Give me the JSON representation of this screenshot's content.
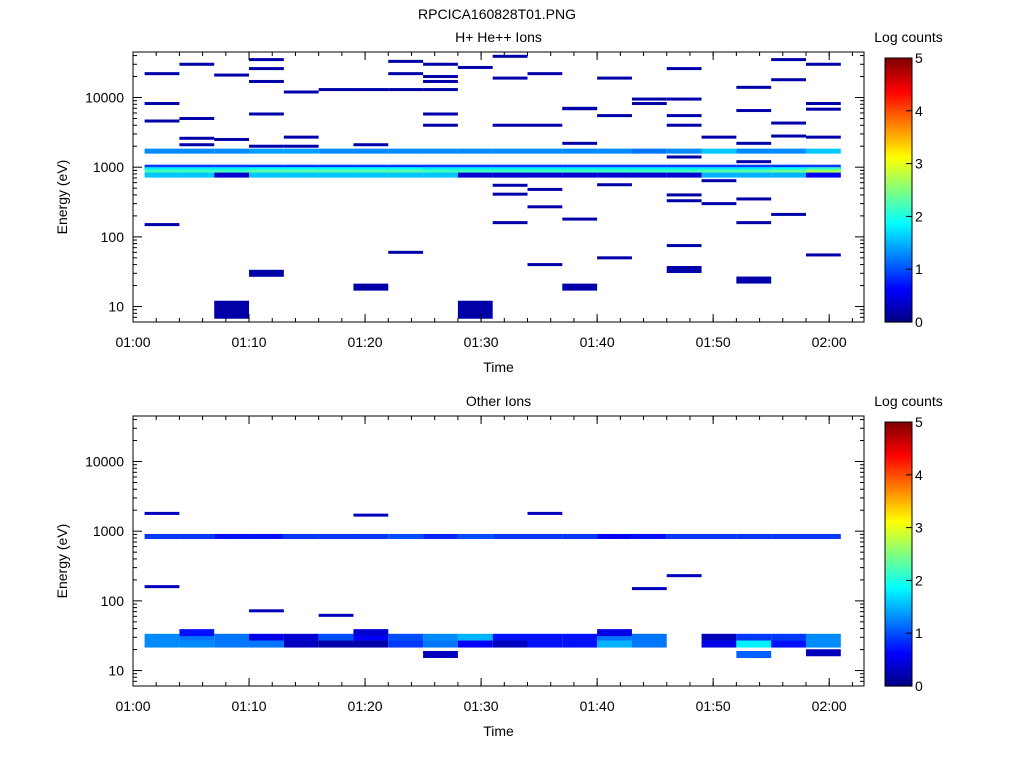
{
  "figure_title": "RPCICA160828T01.PNG",
  "colors": {
    "colormap": [
      "#000080",
      "#0000ff",
      "#0080ff",
      "#00ffff",
      "#80ff80",
      "#ffff00",
      "#ff8000",
      "#ff0000",
      "#800000"
    ],
    "axis": "#000000"
  },
  "chart_data": [
    {
      "type": "heatmap",
      "title": "H+ He++ Ions",
      "xlabel": "Time",
      "ylabel": "Energy (eV)",
      "yscale": "log",
      "xlim": [
        "01:00",
        "02:03"
      ],
      "ylim": [
        6,
        45000
      ],
      "x_ticks": [
        "01:00",
        "01:10",
        "01:20",
        "01:30",
        "01:40",
        "01:50",
        "02:00"
      ],
      "y_ticks": [
        "10",
        "100",
        "1000",
        "10000"
      ],
      "colorbar": {
        "label": "Log counts",
        "range": [
          0,
          5
        ],
        "ticks": [
          "0",
          "1",
          "2",
          "3",
          "4",
          "5"
        ]
      },
      "time_bins": [
        "01:01",
        "01:04",
        "01:07",
        "01:10",
        "01:13",
        "01:16",
        "01:19",
        "01:22",
        "01:25",
        "01:28",
        "01:31",
        "01:34",
        "01:37",
        "01:40",
        "01:43",
        "01:46",
        "01:49",
        "01:52",
        "01:55",
        "01:58",
        "02:01"
      ],
      "cells": [
        {
          "t": 0,
          "e": 22000,
          "v": 0.2
        },
        {
          "t": 0,
          "e": 8200,
          "v": 0.2
        },
        {
          "t": 0,
          "e": 4600,
          "v": 0.2
        },
        {
          "t": 0,
          "e": 150,
          "v": 0.2
        },
        {
          "t": 1,
          "e": 30000,
          "v": 0.2
        },
        {
          "t": 1,
          "e": 5000,
          "v": 0.2
        },
        {
          "t": 1,
          "e": 2600,
          "v": 0.2
        },
        {
          "t": 1,
          "e": 2100,
          "v": 0.2
        },
        {
          "t": 2,
          "e": 21000,
          "v": 0.2
        },
        {
          "t": 2,
          "e": 2500,
          "v": 0.2
        },
        {
          "t": 2,
          "e": 9,
          "v": 0.2
        },
        {
          "t": 3,
          "e": 35000,
          "v": 0.2
        },
        {
          "t": 3,
          "e": 26000,
          "v": 0.2
        },
        {
          "t": 3,
          "e": 17000,
          "v": 0.2
        },
        {
          "t": 3,
          "e": 5800,
          "v": 0.2
        },
        {
          "t": 3,
          "e": 2000,
          "v": 0.2
        },
        {
          "t": 3,
          "e": 30,
          "v": 0.2
        },
        {
          "t": 4,
          "e": 12000,
          "v": 0.2
        },
        {
          "t": 4,
          "e": 2700,
          "v": 0.2
        },
        {
          "t": 4,
          "e": 2000,
          "v": 0.2
        },
        {
          "t": 5,
          "e": 13000,
          "v": 0.2
        },
        {
          "t": 6,
          "e": 13000,
          "v": 0.2
        },
        {
          "t": 6,
          "e": 2100,
          "v": 0.2
        },
        {
          "t": 6,
          "e": 19,
          "v": 0.2
        },
        {
          "t": 7,
          "e": 33000,
          "v": 0.2
        },
        {
          "t": 7,
          "e": 22000,
          "v": 0.2
        },
        {
          "t": 7,
          "e": 13000,
          "v": 0.2
        },
        {
          "t": 7,
          "e": 60,
          "v": 0.2
        },
        {
          "t": 8,
          "e": 30000,
          "v": 0.2
        },
        {
          "t": 8,
          "e": 20000,
          "v": 0.2
        },
        {
          "t": 8,
          "e": 17000,
          "v": 0.2
        },
        {
          "t": 8,
          "e": 13000,
          "v": 0.2
        },
        {
          "t": 8,
          "e": 5800,
          "v": 0.2
        },
        {
          "t": 8,
          "e": 4000,
          "v": 0.2
        },
        {
          "t": 9,
          "e": 27000,
          "v": 0.2
        },
        {
          "t": 9,
          "e": 9,
          "v": 0.2
        },
        {
          "t": 10,
          "e": 39000,
          "v": 0.2
        },
        {
          "t": 10,
          "e": 19000,
          "v": 0.2
        },
        {
          "t": 10,
          "e": 4000,
          "v": 0.2
        },
        {
          "t": 10,
          "e": 550,
          "v": 0.2
        },
        {
          "t": 10,
          "e": 410,
          "v": 0.2
        },
        {
          "t": 10,
          "e": 160,
          "v": 0.2
        },
        {
          "t": 11,
          "e": 22000,
          "v": 0.2
        },
        {
          "t": 11,
          "e": 4000,
          "v": 0.2
        },
        {
          "t": 11,
          "e": 480,
          "v": 0.2
        },
        {
          "t": 11,
          "e": 270,
          "v": 0.2
        },
        {
          "t": 11,
          "e": 40,
          "v": 0.2
        },
        {
          "t": 12,
          "e": 7000,
          "v": 0.2
        },
        {
          "t": 12,
          "e": 6900,
          "v": 0.2
        },
        {
          "t": 12,
          "e": 2200,
          "v": 0.2
        },
        {
          "t": 12,
          "e": 180,
          "v": 0.2
        },
        {
          "t": 12,
          "e": 19,
          "v": 0.2
        },
        {
          "t": 13,
          "e": 19000,
          "v": 0.2
        },
        {
          "t": 13,
          "e": 5500,
          "v": 0.2
        },
        {
          "t": 13,
          "e": 560,
          "v": 0.2
        },
        {
          "t": 13,
          "e": 50,
          "v": 0.2
        },
        {
          "t": 14,
          "e": 9500,
          "v": 0.2
        },
        {
          "t": 14,
          "e": 8200,
          "v": 0.2
        },
        {
          "t": 15,
          "e": 26000,
          "v": 0.2
        },
        {
          "t": 15,
          "e": 9500,
          "v": 0.2
        },
        {
          "t": 15,
          "e": 5500,
          "v": 0.2
        },
        {
          "t": 15,
          "e": 4000,
          "v": 0.2
        },
        {
          "t": 15,
          "e": 1400,
          "v": 0.2
        },
        {
          "t": 15,
          "e": 400,
          "v": 0.2
        },
        {
          "t": 15,
          "e": 330,
          "v": 0.2
        },
        {
          "t": 15,
          "e": 75,
          "v": 0.2
        },
        {
          "t": 15,
          "e": 34,
          "v": 0.2
        },
        {
          "t": 16,
          "e": 2700,
          "v": 0.2
        },
        {
          "t": 16,
          "e": 640,
          "v": 0.2
        },
        {
          "t": 16,
          "e": 300,
          "v": 0.2
        },
        {
          "t": 17,
          "e": 14000,
          "v": 0.2
        },
        {
          "t": 17,
          "e": 6500,
          "v": 0.2
        },
        {
          "t": 17,
          "e": 2200,
          "v": 0.2
        },
        {
          "t": 17,
          "e": 1200,
          "v": 0.2
        },
        {
          "t": 17,
          "e": 350,
          "v": 0.2
        },
        {
          "t": 17,
          "e": 160,
          "v": 0.2
        },
        {
          "t": 17,
          "e": 24,
          "v": 0.2
        },
        {
          "t": 18,
          "e": 35000,
          "v": 0.2
        },
        {
          "t": 18,
          "e": 18000,
          "v": 0.2
        },
        {
          "t": 18,
          "e": 4300,
          "v": 0.2
        },
        {
          "t": 18,
          "e": 2800,
          "v": 0.2
        },
        {
          "t": 18,
          "e": 210,
          "v": 0.2
        },
        {
          "t": 19,
          "e": 30000,
          "v": 0.2
        },
        {
          "t": 19,
          "e": 8200,
          "v": 0.2
        },
        {
          "t": 19,
          "e": 6800,
          "v": 0.2
        },
        {
          "t": 19,
          "e": 2700,
          "v": 0.2
        },
        {
          "t": 19,
          "e": 55,
          "v": 0.2
        }
      ],
      "bands": [
        {
          "e": 1700,
          "v": [
            1.3,
            1.3,
            1.3,
            1.4,
            1.4,
            1.3,
            1.3,
            1.3,
            1.3,
            1.3,
            1.3,
            1.3,
            1.3,
            1.3,
            1.2,
            1.3,
            1.6,
            1.3,
            1.3,
            1.6
          ]
        },
        {
          "e": 1000,
          "v": [
            0.9,
            0.9,
            0.9,
            0.9,
            0.9,
            0.9,
            0.9,
            0.9,
            0.9,
            0.9,
            0.9,
            0.9,
            0.9,
            0.9,
            0.9,
            0.9,
            0.9,
            0.9,
            0.9,
            0.9
          ]
        },
        {
          "e": 920,
          "v": [
            1.8,
            1.8,
            1.8,
            1.9,
            1.9,
            1.9,
            1.9,
            1.9,
            1.8,
            1.8,
            1.8,
            1.8,
            1.8,
            1.8,
            1.8,
            1.8,
            1.8,
            1.8,
            1.9,
            2.1
          ]
        },
        {
          "e": 850,
          "v": [
            2.2,
            2.2,
            2.2,
            2.3,
            2.3,
            2.3,
            2.3,
            2.3,
            2.2,
            2.2,
            2.2,
            2.2,
            2.2,
            2.2,
            2.2,
            2.2,
            2.3,
            2.3,
            2.4,
            2.7
          ]
        },
        {
          "e": 770,
          "v": [
            1.6,
            1.6,
            0.4,
            1.6,
            1.6,
            1.6,
            1.6,
            1.6,
            1.6,
            0.4,
            0.4,
            0.4,
            0.4,
            0.4,
            0.4,
            0.4,
            1.5,
            1.5,
            1.5,
            0.6
          ]
        }
      ]
    },
    {
      "type": "heatmap",
      "title": "Other Ions",
      "xlabel": "Time",
      "ylabel": "Energy (eV)",
      "yscale": "log",
      "xlim": [
        "01:00",
        "02:03"
      ],
      "ylim": [
        6,
        45000
      ],
      "x_ticks": [
        "01:00",
        "01:10",
        "01:20",
        "01:30",
        "01:40",
        "01:50",
        "02:00"
      ],
      "y_ticks": [
        "10",
        "100",
        "1000",
        "10000"
      ],
      "colorbar": {
        "label": "Log counts",
        "range": [
          0,
          5
        ],
        "ticks": [
          "0",
          "1",
          "2",
          "3",
          "4",
          "5"
        ]
      },
      "time_bins": [
        "01:01",
        "01:04",
        "01:07",
        "01:10",
        "01:13",
        "01:16",
        "01:19",
        "01:22",
        "01:25",
        "01:28",
        "01:31",
        "01:34",
        "01:37",
        "01:40",
        "01:43",
        "01:46",
        "01:49",
        "01:52",
        "01:55",
        "01:58",
        "02:01"
      ],
      "cells": [
        {
          "t": 0,
          "e": 1800,
          "v": 0.3
        },
        {
          "t": 0,
          "e": 160,
          "v": 0.3
        },
        {
          "t": 3,
          "e": 72,
          "v": 0.3
        },
        {
          "t": 5,
          "e": 62,
          "v": 0.3
        },
        {
          "t": 6,
          "e": 1700,
          "v": 0.3
        },
        {
          "t": 11,
          "e": 1800,
          "v": 0.3
        },
        {
          "t": 14,
          "e": 150,
          "v": 0.3
        },
        {
          "t": 15,
          "e": 230,
          "v": 0.3
        },
        {
          "t": 1,
          "e": 35,
          "v": 0.7
        },
        {
          "t": 6,
          "e": 35,
          "v": 0.4
        },
        {
          "t": 8,
          "e": 17,
          "v": 0.3
        },
        {
          "t": 17,
          "e": 17,
          "v": 1.1
        },
        {
          "t": 19,
          "e": 18,
          "v": 0.3
        },
        {
          "t": 13,
          "e": 35,
          "v": 0.5
        }
      ],
      "bands": [
        {
          "e": 840,
          "v": [
            0.9,
            0.9,
            0.7,
            0.7,
            0.9,
            0.9,
            0.9,
            1.0,
            0.8,
            1.0,
            0.9,
            0.9,
            0.9,
            0.6,
            0.7,
            0.9,
            0.9,
            0.9,
            0.9,
            0.9
          ]
        },
        {
          "e": 30,
          "v": [
            1.3,
            1.2,
            1.2,
            0.5,
            0.4,
            1.0,
            0.6,
            1.0,
            1.3,
            1.5,
            0.7,
            0.7,
            0.7,
            1.2,
            1.2,
            null,
            0.3,
            0.9,
            0.9,
            1.3
          ]
        },
        {
          "e": 24,
          "v": [
            1.3,
            1.3,
            1.2,
            1.2,
            0.3,
            0.2,
            0.2,
            0.9,
            1.2,
            0.6,
            0.3,
            0.7,
            0.7,
            1.5,
            1.2,
            null,
            0.5,
            1.8,
            0.7,
            1.3
          ]
        }
      ]
    }
  ]
}
